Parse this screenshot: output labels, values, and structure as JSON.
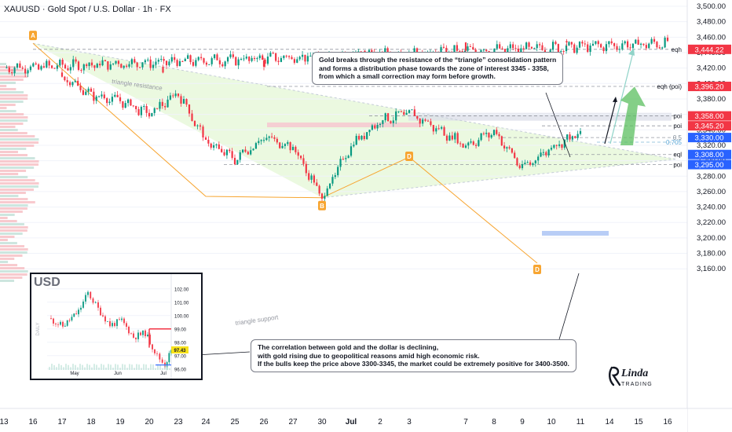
{
  "header": {
    "title": "XAUUSD · Gold Spot / U.S. Dollar · 1h · FX"
  },
  "chart_data": [
    {
      "type": "candlestick",
      "symbol": "XAUUSD",
      "title": "XAUUSD · Gold Spot / U.S. Dollar · 1h · FX",
      "ylim": [
        3150,
        3510
      ],
      "y_ticks": [
        "3,500.00",
        "3,480.00",
        "3,460.00",
        "3,440.00",
        "3,420.00",
        "3,400.00",
        "3,380.00",
        "3,360.00",
        "3,340.00",
        "3,320.00",
        "3,300.00",
        "3,280.00",
        "3,260.00",
        "3,240.00",
        "3,220.00",
        "3,200.00",
        "3,180.00",
        "3,160.00"
      ],
      "x_ticks": [
        "13",
        "16",
        "17",
        "18",
        "19",
        "20",
        "23",
        "24",
        "25",
        "26",
        "27",
        "30",
        "Jul",
        "2",
        "3",
        "7",
        "8",
        "9",
        "10",
        "11",
        "14",
        "15",
        "16"
      ],
      "path_points": [
        {
          "x": "13",
          "y": 3420
        },
        {
          "x": "16",
          "y": 3452
        },
        {
          "x": "17",
          "y": 3410
        },
        {
          "x": "18",
          "y": 3385
        },
        {
          "x": "19",
          "y": 3378
        },
        {
          "x": "20",
          "y": 3360
        },
        {
          "x": "23",
          "y": 3388
        },
        {
          "x": "24",
          "y": 3325
        },
        {
          "x": "25",
          "y": 3302
        },
        {
          "x": "26",
          "y": 3330
        },
        {
          "x": "27",
          "y": 3318
        },
        {
          "x": "30",
          "y": 3252
        },
        {
          "x": "Jul",
          "y": 3320
        },
        {
          "x": "2",
          "y": 3352
        },
        {
          "x": "3",
          "y": 3362
        },
        {
          "x": "7",
          "y": 3320
        },
        {
          "x": "8",
          "y": 3338
        },
        {
          "x": "9",
          "y": 3290
        },
        {
          "x": "10",
          "y": 3318
        },
        {
          "x": "11",
          "y": 3335
        }
      ],
      "price_labels": [
        {
          "value": "3,444.22",
          "tag": "eqh",
          "color": "#f23645"
        },
        {
          "value": "3,396.20",
          "tag": "eqh (poi)",
          "color": "#f23645"
        },
        {
          "value": "3,358.00",
          "tag": "poi",
          "color": "#f23645"
        },
        {
          "value": "3,345.20",
          "tag": "poi",
          "color": "#f23645"
        },
        {
          "value": "3,330.00",
          "tag": "0.5",
          "color": "#2962ff"
        },
        {
          "value": "3,308.00",
          "tag": "eql",
          "color": "#2962ff"
        },
        {
          "value": "3,295.00",
          "tag": "poi",
          "color": "#2962ff"
        }
      ],
      "fib_label": "0.705",
      "pattern_points": [
        "A",
        "B",
        "D",
        "D"
      ],
      "pattern_lines": [
        "triangle resistance",
        "triangle support"
      ]
    },
    {
      "type": "candlestick",
      "title": "USD",
      "side_label": "DAILY",
      "x_ticks": [
        "May",
        "Jun",
        "Jul"
      ],
      "y_ticks": [
        "102.00",
        "101.00",
        "100.00",
        "99.00",
        "98.00",
        "97.00",
        "96.00"
      ],
      "ylim": [
        95.8,
        102.4
      ],
      "last_price": "97.43",
      "level_line": 99.0,
      "colors": {
        "up": "#089981",
        "down": "#f23645"
      }
    }
  ],
  "annotations": {
    "note_top": [
      "Gold breaks through the resistance of the “triangle” consolidation pattern",
      "and forms a distribution phase towards the zone of interest 3345 - 3358,",
      "from which a small correction may form before growth."
    ],
    "note_bottom": [
      "The correlation between gold and the dollar is declining,",
      "with gold rising due to geopolitical reasons amid high economic risk.",
      "If the bulls keep the price above 3300-3345, the market could be extremely positive for 3400-3500."
    ]
  },
  "logo": {
    "text": "Linda",
    "sub": "TRADING"
  },
  "colors": {
    "up": "#089981",
    "down": "#f23645",
    "red_label": "#f23645",
    "blue_label": "#2962ff",
    "triangle_fill": "#e6f7d8"
  }
}
